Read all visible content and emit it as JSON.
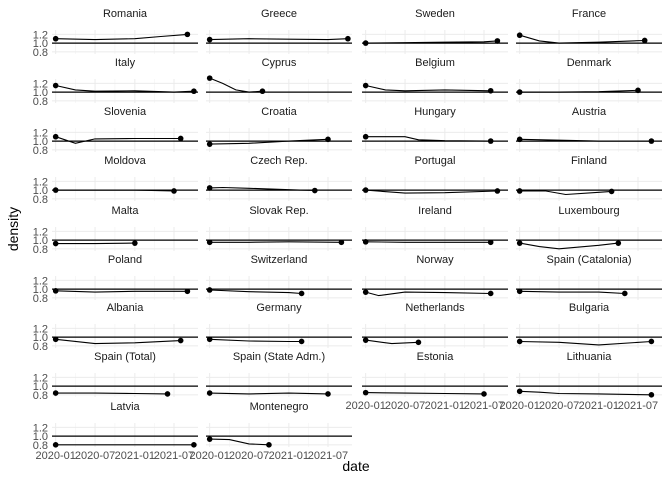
{
  "chart_data": {
    "type": "line",
    "xlabel": "date",
    "ylabel": "density",
    "y_ticks": [
      0.8,
      1.0,
      1.2
    ],
    "ylim": [
      0.75,
      1.3
    ],
    "x_ticks": [
      "2020-01",
      "2020-07",
      "2021-01",
      "2021-07"
    ],
    "xlim": [
      "2019-12-15",
      "2021-10-20"
    ],
    "reference_line": 1.0,
    "grid": true,
    "ncol": 4,
    "facets": [
      {
        "name": "Romania",
        "x": [
          "2020-01",
          "2020-07",
          "2021-01",
          "2021-05",
          "2021-09"
        ],
        "values": [
          1.1,
          1.08,
          1.1,
          1.15,
          1.2
        ]
      },
      {
        "name": "Greece",
        "x": [
          "2020-01",
          "2020-07",
          "2021-01",
          "2021-07",
          "2021-10"
        ],
        "values": [
          1.08,
          1.1,
          1.09,
          1.08,
          1.1
        ]
      },
      {
        "name": "Sweden",
        "x": [
          "2020-01",
          "2020-07",
          "2021-01",
          "2021-07",
          "2021-09"
        ],
        "values": [
          1.0,
          1.01,
          1.02,
          1.03,
          1.05
        ]
      },
      {
        "name": "France",
        "x": [
          "2020-01",
          "2020-04",
          "2020-07",
          "2021-01",
          "2021-08"
        ],
        "values": [
          1.18,
          1.05,
          1.0,
          1.02,
          1.06
        ]
      },
      {
        "name": "Italy",
        "x": [
          "2020-01",
          "2020-04",
          "2020-07",
          "2021-01",
          "2021-07",
          "2021-10"
        ],
        "values": [
          1.15,
          1.05,
          1.02,
          1.03,
          1.0,
          1.02
        ]
      },
      {
        "name": "Cyprus",
        "x": [
          "2020-01",
          "2020-03",
          "2020-05",
          "2020-07",
          "2020-09"
        ],
        "values": [
          1.32,
          1.2,
          1.05,
          1.0,
          1.02
        ]
      },
      {
        "name": "Belgium",
        "x": [
          "2020-01",
          "2020-04",
          "2020-07",
          "2021-01",
          "2021-08"
        ],
        "values": [
          1.15,
          1.05,
          1.03,
          1.05,
          1.03
        ]
      },
      {
        "name": "Denmark",
        "x": [
          "2020-01",
          "2020-07",
          "2021-01",
          "2021-07"
        ],
        "values": [
          1.0,
          1.0,
          1.01,
          1.04
        ]
      },
      {
        "name": "Slovenia",
        "x": [
          "2020-01",
          "2020-04",
          "2020-07",
          "2021-01",
          "2021-08"
        ],
        "values": [
          1.1,
          0.95,
          1.05,
          1.06,
          1.06
        ]
      },
      {
        "name": "Croatia",
        "x": [
          "2020-01",
          "2020-07",
          "2021-01",
          "2021-07"
        ],
        "values": [
          0.93,
          0.95,
          1.0,
          1.04
        ]
      },
      {
        "name": "Hungary",
        "x": [
          "2020-01",
          "2020-07",
          "2020-09",
          "2021-01",
          "2021-08"
        ],
        "values": [
          1.1,
          1.1,
          1.03,
          1.01,
          1.0
        ]
      },
      {
        "name": "Austria",
        "x": [
          "2020-01",
          "2020-07",
          "2021-01",
          "2021-09"
        ],
        "values": [
          1.04,
          1.02,
          1.0,
          1.0
        ]
      },
      {
        "name": "Moldova",
        "x": [
          "2020-01",
          "2020-07",
          "2021-01",
          "2021-07"
        ],
        "values": [
          1.0,
          1.0,
          1.0,
          0.98
        ]
      },
      {
        "name": "Czech Rep.",
        "x": [
          "2020-01",
          "2020-03",
          "2020-07",
          "2021-01",
          "2021-05"
        ],
        "values": [
          1.05,
          1.06,
          1.04,
          1.01,
          0.99
        ]
      },
      {
        "name": "Portugal",
        "x": [
          "2020-01",
          "2020-07",
          "2021-01",
          "2021-09"
        ],
        "values": [
          1.0,
          0.93,
          0.94,
          0.98
        ]
      },
      {
        "name": "Finland",
        "x": [
          "2020-01",
          "2020-05",
          "2020-08",
          "2021-01",
          "2021-03"
        ],
        "values": [
          0.98,
          0.98,
          0.9,
          0.95,
          0.97
        ]
      },
      {
        "name": "Malta",
        "x": [
          "2020-01",
          "2020-07",
          "2021-01"
        ],
        "values": [
          0.92,
          0.92,
          0.93
        ]
      },
      {
        "name": "Slovak Rep.",
        "x": [
          "2020-01",
          "2020-07",
          "2021-01",
          "2021-09"
        ],
        "values": [
          0.95,
          0.95,
          0.96,
          0.95
        ]
      },
      {
        "name": "Ireland",
        "x": [
          "2020-01",
          "2020-07",
          "2021-01",
          "2021-08"
        ],
        "values": [
          0.96,
          0.95,
          0.95,
          0.95
        ]
      },
      {
        "name": "Luxembourg",
        "x": [
          "2020-01",
          "2020-04",
          "2020-07",
          "2021-01",
          "2021-04"
        ],
        "values": [
          0.93,
          0.85,
          0.8,
          0.88,
          0.93
        ]
      },
      {
        "name": "Poland",
        "x": [
          "2020-01",
          "2020-07",
          "2021-01",
          "2021-09"
        ],
        "values": [
          0.96,
          0.93,
          0.95,
          0.95
        ]
      },
      {
        "name": "Switzerland",
        "x": [
          "2020-01",
          "2020-07",
          "2021-01",
          "2021-03"
        ],
        "values": [
          0.98,
          0.94,
          0.92,
          0.9
        ]
      },
      {
        "name": "Norway",
        "x": [
          "2020-01",
          "2020-03",
          "2020-07",
          "2021-01",
          "2021-08"
        ],
        "values": [
          0.93,
          0.85,
          0.93,
          0.92,
          0.9
        ]
      },
      {
        "name": "Spain (Catalonia)",
        "x": [
          "2020-01",
          "2020-07",
          "2021-01",
          "2021-05"
        ],
        "values": [
          0.95,
          0.93,
          0.93,
          0.9
        ]
      },
      {
        "name": "Albania",
        "x": [
          "2020-01",
          "2020-07",
          "2021-01",
          "2021-08"
        ],
        "values": [
          0.95,
          0.85,
          0.87,
          0.92
        ]
      },
      {
        "name": "Germany",
        "x": [
          "2020-01",
          "2020-07",
          "2021-01",
          "2021-03"
        ],
        "values": [
          0.95,
          0.91,
          0.9,
          0.9
        ]
      },
      {
        "name": "Netherlands",
        "x": [
          "2020-01",
          "2020-05",
          "2020-09"
        ],
        "values": [
          0.93,
          0.85,
          0.88
        ]
      },
      {
        "name": "Bulgaria",
        "x": [
          "2020-01",
          "2020-07",
          "2021-01",
          "2021-09"
        ],
        "values": [
          0.9,
          0.88,
          0.82,
          0.9
        ]
      },
      {
        "name": "Spain (Total)",
        "x": [
          "2020-01",
          "2020-07",
          "2021-01",
          "2021-06"
        ],
        "values": [
          0.84,
          0.84,
          0.83,
          0.82
        ]
      },
      {
        "name": "Spain (State Adm.)",
        "x": [
          "2020-01",
          "2020-07",
          "2021-01",
          "2021-07"
        ],
        "values": [
          0.84,
          0.82,
          0.84,
          0.82
        ]
      },
      {
        "name": "Estonia",
        "x": [
          "2020-01",
          "2020-07",
          "2021-01",
          "2021-07"
        ],
        "values": [
          0.85,
          0.84,
          0.83,
          0.82
        ]
      },
      {
        "name": "Lithuania",
        "x": [
          "2020-01",
          "2020-04",
          "2020-07",
          "2021-01",
          "2021-09"
        ],
        "values": [
          0.88,
          0.86,
          0.83,
          0.82,
          0.8
        ]
      },
      {
        "name": "Latvia",
        "x": [
          "2020-01",
          "2020-07",
          "2021-01",
          "2021-10"
        ],
        "values": [
          0.8,
          0.8,
          0.8,
          0.8
        ]
      },
      {
        "name": "Montenegro",
        "x": [
          "2020-01",
          "2020-04",
          "2020-07",
          "2020-10"
        ],
        "values": [
          0.93,
          0.92,
          0.82,
          0.8
        ]
      }
    ]
  }
}
